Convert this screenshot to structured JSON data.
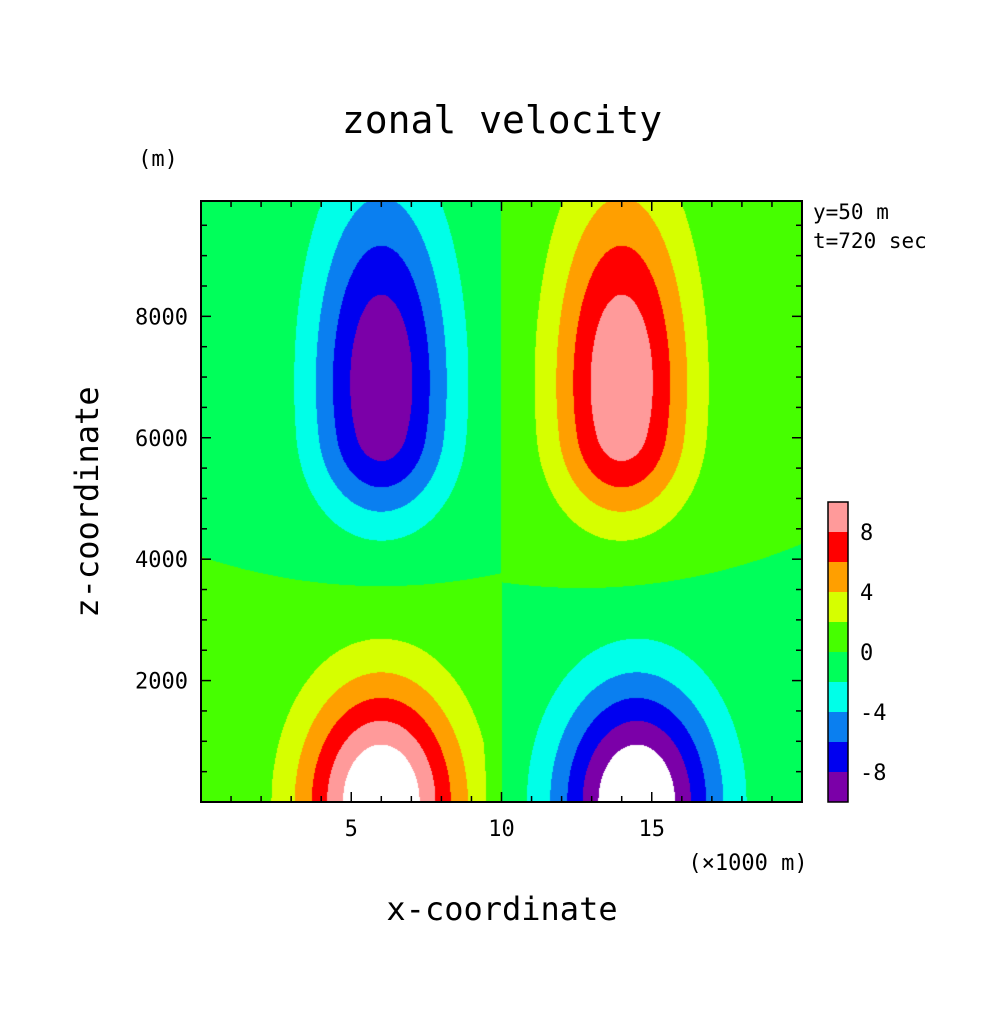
{
  "chart_data": {
    "type": "heatmap",
    "subtype": "filled-contour",
    "title": "zonal velocity",
    "xlabel": "x-coordinate",
    "ylabel": "z-coordinate",
    "x_unit": "(×1000 m)",
    "y_unit": "(m)",
    "annotations": [
      "y=50 m",
      "t=720 sec"
    ],
    "xlim": [
      0,
      20
    ],
    "ylim": [
      0,
      9900
    ],
    "x_ticks": [
      5,
      10,
      15
    ],
    "y_ticks": [
      2000,
      4000,
      6000,
      8000
    ],
    "contour_levels": [
      -10,
      -8,
      -6,
      -4,
      -2,
      0,
      2,
      4,
      6,
      8,
      10
    ],
    "colorbar": {
      "placement": "right",
      "tick_labels": [
        "8",
        "4",
        "0",
        "-4",
        "-8"
      ],
      "tick_values": [
        8,
        4,
        0,
        -4,
        -8
      ],
      "colors": [
        "#7b00a8",
        "#0000f0",
        "#0a7ff0",
        "#00ffe8",
        "#00ff5a",
        "#46ff00",
        "#d6ff00",
        "#ff9f00",
        "#ff0000",
        "#ff9a9a"
      ]
    },
    "features": [
      {
        "x": 6.0,
        "z": 7000,
        "sign": "negative",
        "min_value": -9.5
      },
      {
        "x": 14.0,
        "z": 7000,
        "sign": "positive",
        "max_value": 9.5
      },
      {
        "x": 6.0,
        "z": 0,
        "sign": "positive",
        "max_value": 11.5
      },
      {
        "x": 14.5,
        "z": 0,
        "sign": "negative",
        "min_value": -11.5
      }
    ]
  }
}
